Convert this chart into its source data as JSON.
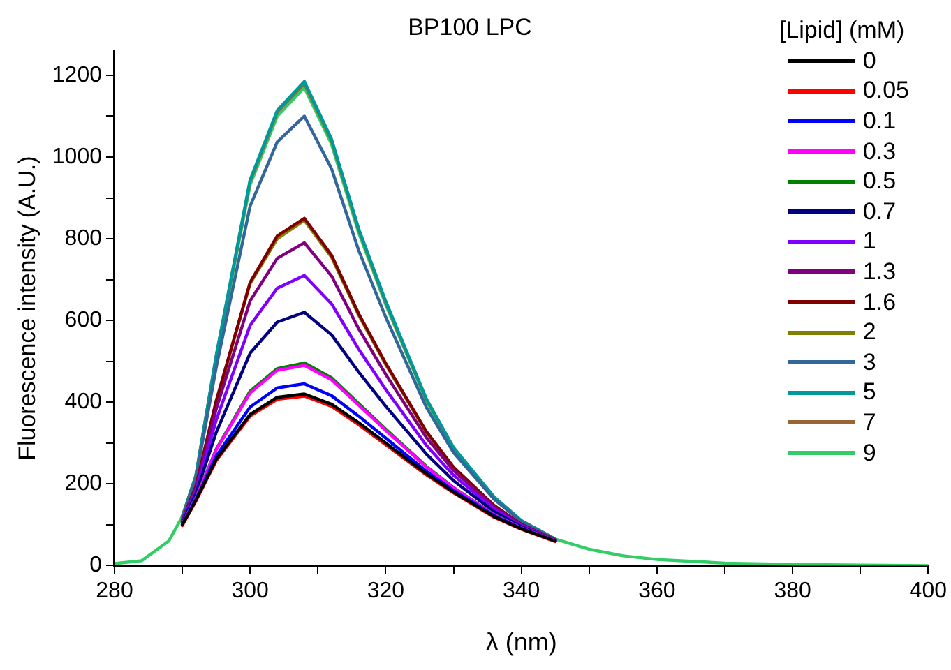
{
  "chart_data": {
    "type": "line",
    "title": "BP100 LPC",
    "xlabel": "λ (nm)",
    "ylabel": "Fluorescence intensity (A.U.)",
    "legend_title": "[Lipid] (mM)",
    "legend": "top right",
    "grid": false,
    "marker": "none",
    "line_style": "solid",
    "x": [
      280,
      284,
      288,
      290,
      292,
      295,
      300,
      304,
      308,
      312,
      316,
      320,
      326,
      330,
      336,
      340,
      345,
      350,
      355,
      360,
      370,
      380,
      390,
      400
    ],
    "xlim": [
      280,
      400
    ],
    "xticks": [
      280,
      {
        "value": 290,
        "label": null
      },
      300,
      {
        "value": 310,
        "label": null
      },
      320,
      {
        "value": 330,
        "label": null
      },
      340,
      {
        "value": 350,
        "label": null
      },
      360,
      {
        "value": 370,
        "label": null
      },
      380,
      {
        "value": 390,
        "label": null
      },
      400
    ],
    "ylim": [
      0,
      1260
    ],
    "yticks": [
      0,
      {
        "value": 100,
        "label": null
      },
      200,
      {
        "value": 300,
        "label": null
      },
      400,
      {
        "value": 500,
        "label": null
      },
      600,
      {
        "value": 700,
        "label": null
      },
      800,
      {
        "value": 900,
        "label": null
      },
      1000,
      {
        "value": 1100,
        "label": null
      },
      1200
    ],
    "series": [
      {
        "name": "0",
        "color": "#000000",
        "values": [
          null,
          null,
          null,
          100,
          160,
          260,
          370,
          412,
          420,
          395,
          350,
          300,
          225,
          180,
          120,
          90,
          60,
          null,
          null,
          null,
          null,
          null,
          null,
          null
        ]
      },
      {
        "name": "0.05",
        "color": "#ff0000",
        "values": [
          null,
          null,
          null,
          98,
          158,
          257,
          366,
          407,
          415,
          390,
          345,
          296,
          222,
          178,
          118,
          89,
          59,
          null,
          null,
          null,
          null,
          null,
          null,
          null
        ]
      },
      {
        "name": "0.1",
        "color": "#0000ff",
        "values": [
          null,
          null,
          null,
          101,
          162,
          268,
          388,
          435,
          445,
          416,
          366,
          312,
          231,
          184,
          122,
          91,
          60,
          null,
          null,
          null,
          null,
          null,
          null,
          null
        ]
      },
      {
        "name": "0.3",
        "color": "#ff00ff",
        "values": [
          null,
          null,
          null,
          102,
          165,
          283,
          423,
          478,
          490,
          455,
          393,
          331,
          241,
          190,
          124,
          92,
          61,
          null,
          null,
          null,
          null,
          null,
          null,
          null
        ]
      },
      {
        "name": "0.5",
        "color": "#008000",
        "values": [
          null,
          null,
          null,
          102,
          166,
          285,
          427,
          482,
          496,
          460,
          397,
          334,
          243,
          191,
          125,
          92,
          61,
          null,
          null,
          null,
          null,
          null,
          null,
          null
        ]
      },
      {
        "name": "0.7",
        "color": "#000080",
        "values": [
          null,
          null,
          null,
          105,
          176,
          326,
          520,
          596,
          620,
          565,
          474,
          390,
          273,
          208,
          132,
          95,
          61,
          null,
          null,
          null,
          null,
          null,
          null,
          null
        ]
      },
      {
        "name": "1",
        "color": "#8000ff",
        "values": [
          null,
          null,
          null,
          108,
          183,
          356,
          588,
          679,
          710,
          641,
          530,
          431,
          294,
          221,
          138,
          98,
          62,
          null,
          null,
          null,
          null,
          null,
          null,
          null
        ]
      },
      {
        "name": "1.3",
        "color": "#800080",
        "values": [
          null,
          null,
          null,
          110,
          189,
          383,
          648,
          752,
          790,
          709,
          580,
          468,
          313,
          233,
          143,
          100,
          62,
          null,
          null,
          null,
          null,
          null,
          null,
          null
        ]
      },
      {
        "name": "1.6",
        "color": "#800000",
        "values": [
          null,
          null,
          null,
          111,
          194,
          403,
          693,
          807,
          850,
          760,
          617,
          495,
          328,
          241,
          147,
          101,
          63,
          null,
          null,
          null,
          null,
          null,
          null,
          null
        ]
      },
      {
        "name": "2",
        "color": "#808000",
        "values": [
          null,
          null,
          null,
          111,
          194,
          402,
          690,
          800,
          845,
          755,
          613,
          492,
          326,
          240,
          null,
          null,
          null,
          null,
          null,
          null,
          null,
          null,
          null,
          null
        ]
      },
      {
        "name": "3",
        "color": "#336699",
        "values": [
          null,
          null,
          null,
          118,
          214,
          485,
          880,
          1037,
          1100,
          972,
          772,
          608,
          387,
          277,
          162,
          108,
          64,
          null,
          null,
          null,
          null,
          null,
          null,
          null
        ]
      },
      {
        "name": "5",
        "color": "#009999",
        "values": [
          null,
          null,
          null,
          120,
          220,
          514,
          944,
          1114,
          1185,
          1044,
          825,
          647,
          408,
          289,
          168,
          110,
          65,
          null,
          null,
          null,
          null,
          null,
          null,
          null
        ]
      },
      {
        "name": "7",
        "color": "#996633",
        "values": [
          null,
          null,
          null,
          120,
          220,
          512,
          940,
          1110,
          1180,
          1040,
          822,
          644,
          406,
          288,
          167,
          110,
          65,
          null,
          null,
          null,
          null,
          null,
          null,
          null
        ]
      },
      {
        "name": "9",
        "color": "#33cc66",
        "values": [
          5,
          12,
          60,
          120,
          219,
          508,
          932,
          1100,
          1170,
          1032,
          815,
          639,
          403,
          286,
          166,
          109,
          65,
          40,
          24,
          15,
          6,
          3,
          1,
          0
        ]
      }
    ]
  }
}
